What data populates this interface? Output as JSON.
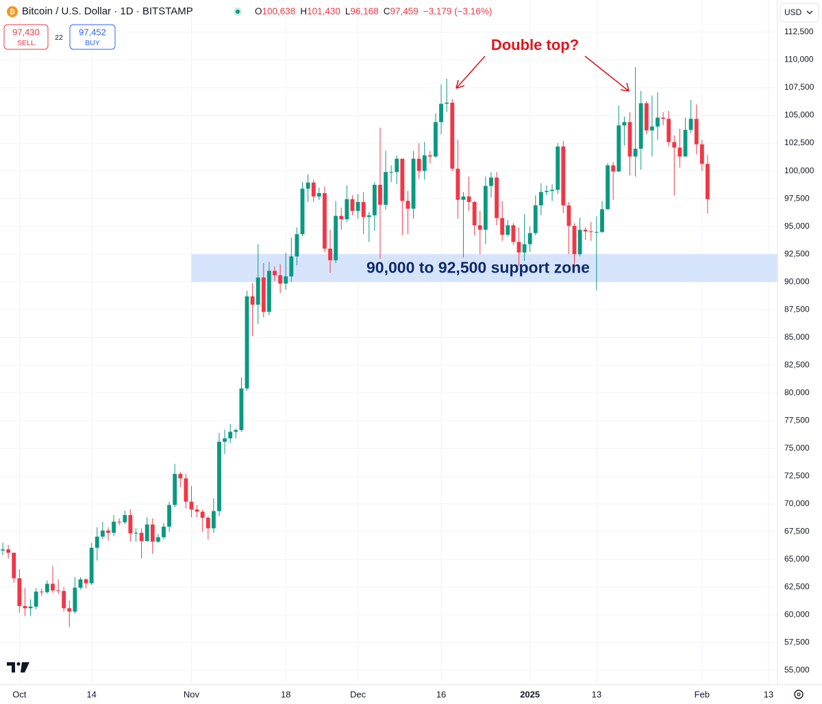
{
  "chart_data": {
    "type": "candlestick",
    "symbol": "Bitcoin / U.S. Dollar · 1D · BITSTAMP",
    "ohlc": [
      {
        "label": "O",
        "value": "100,638"
      },
      {
        "label": "H",
        "value": "101,430"
      },
      {
        "label": "L",
        "value": "96,168"
      },
      {
        "label": "C",
        "value": "97,459"
      }
    ],
    "change": "−3,179 (−3.16%)",
    "sell": {
      "price": "97,430",
      "label": "SELL"
    },
    "spread": "22",
    "buy": {
      "price": "97,452",
      "label": "BUY"
    },
    "currency": "USD",
    "up_color": "#089981",
    "down_color": "#f23645",
    "grid": true,
    "open": [
      65800,
      65900,
      65600,
      63300,
      60800,
      60600,
      60750,
      62100,
      62050,
      62800,
      62200,
      62150,
      60600,
      60300,
      62450,
      63200,
      62850,
      66050,
      67050,
      67600,
      67400,
      68400,
      68350,
      69000,
      67350,
      67400,
      66650,
      68150,
      66600,
      67000,
      67950,
      69900,
      72700,
      72300,
      70200,
      69500,
      69300,
      68750,
      67800,
      69350,
      75600,
      75900,
      76500,
      76650,
      80400,
      88700,
      87950,
      90400,
      87300,
      91000,
      90600,
      89850,
      90500,
      92300,
      94300,
      98400,
      98950,
      97700,
      98000,
      93000,
      91950,
      95950,
      95650,
      97450,
      96400,
      97200,
      95850,
      96000,
      98750,
      96950,
      99900,
      99900,
      101100,
      97300,
      96600,
      101100,
      100000,
      101400,
      101300,
      104400,
      106050,
      106150,
      100200,
      97400,
      97700,
      97200,
      95100,
      94700,
      98650,
      99400,
      95750,
      94250,
      95100,
      93600,
      92650,
      93400,
      94400,
      96900,
      98100,
      98200,
      98300,
      102200,
      96900,
      95050,
      92500,
      94700,
      94550,
      94500,
      94500,
      96550,
      100500,
      99950,
      104100,
      104400,
      101300,
      102000,
      106100,
      103650,
      104000,
      104800,
      104700,
      102600,
      102100,
      101300,
      103700,
      104700,
      102400,
      100638
    ],
    "high": [
      66500,
      66300,
      65600,
      64100,
      62400,
      61400,
      62400,
      62400,
      63100,
      64400,
      63200,
      62500,
      61300,
      63400,
      63400,
      63300,
      66500,
      67900,
      68400,
      67900,
      69000,
      68700,
      69400,
      69500,
      67800,
      67800,
      68800,
      68700,
      67300,
      68300,
      70200,
      73600,
      72900,
      72700,
      71600,
      69900,
      69500,
      68900,
      70500,
      76400,
      76700,
      77200,
      76800,
      81400,
      89200,
      89900,
      93400,
      91700,
      91800,
      91400,
      91600,
      92600,
      94000,
      94900,
      99000,
      99700,
      99200,
      98500,
      98600,
      94700,
      97300,
      96700,
      98700,
      97800,
      97900,
      98100,
      96300,
      99000,
      103900,
      101800,
      100500,
      101400,
      101100,
      98200,
      101800,
      102500,
      102600,
      101800,
      105200,
      107800,
      108300,
      106500,
      102800,
      98100,
      99500,
      97300,
      96400,
      99500,
      99900,
      99900,
      97300,
      95600,
      95300,
      94900,
      96100,
      95000,
      97800,
      98900,
      98700,
      98800,
      102500,
      102700,
      97200,
      95300,
      95800,
      94900,
      95400,
      95900,
      97300,
      100700,
      100800,
      105900,
      104900,
      105300,
      109350,
      107200,
      106300,
      106800,
      107100,
      105300,
      105400,
      103200,
      103800,
      104800,
      106400,
      106000,
      102800,
      101430
    ],
    "low": [
      65400,
      65100,
      62900,
      60200,
      59900,
      59900,
      60500,
      61700,
      61900,
      62000,
      61900,
      60300,
      58900,
      60100,
      62300,
      62400,
      62700,
      64900,
      66800,
      66700,
      67100,
      68100,
      68200,
      66600,
      66600,
      65100,
      66600,
      65500,
      66500,
      66800,
      67500,
      69700,
      71500,
      69600,
      68800,
      68800,
      67500,
      66800,
      67400,
      68900,
      74500,
      75500,
      75900,
      76500,
      80200,
      85100,
      86200,
      86800,
      87000,
      90100,
      89000,
      89300,
      90000,
      91500,
      94100,
      97200,
      97200,
      97400,
      92700,
      90800,
      91700,
      94700,
      95400,
      96000,
      95700,
      94300,
      93600,
      94600,
      92100,
      96500,
      99000,
      98800,
      94200,
      94300,
      95700,
      99300,
      99200,
      100700,
      101200,
      103300,
      105300,
      100000,
      95700,
      92200,
      96400,
      94200,
      92500,
      93400,
      97600,
      95100,
      93700,
      94100,
      93300,
      91400,
      91900,
      92700,
      94200,
      96000,
      97800,
      97300,
      97900,
      96200,
      92500,
      91200,
      92300,
      93800,
      93700,
      89250,
      94400,
      96500,
      97400,
      99900,
      102300,
      99600,
      99500,
      100100,
      103300,
      101300,
      102800,
      104100,
      102200,
      97800,
      100300,
      101300,
      103400,
      101500,
      100000,
      96168
    ],
    "close": [
      65900,
      65600,
      63300,
      60800,
      60600,
      60750,
      62100,
      62050,
      62800,
      62200,
      62150,
      60600,
      60300,
      62450,
      63200,
      62850,
      66050,
      67050,
      67600,
      67400,
      68400,
      68350,
      69000,
      67350,
      67400,
      66650,
      68150,
      66600,
      67000,
      67950,
      69900,
      72700,
      72300,
      70200,
      69500,
      69300,
      68750,
      67800,
      69350,
      75600,
      75900,
      76500,
      76650,
      80400,
      88700,
      87950,
      90400,
      87300,
      91000,
      90600,
      89850,
      90500,
      92300,
      94300,
      98400,
      98950,
      97700,
      98000,
      93000,
      91950,
      95950,
      95650,
      97450,
      96400,
      97200,
      95850,
      96000,
      98750,
      96950,
      99900,
      99900,
      101100,
      97300,
      96600,
      101100,
      100000,
      101400,
      101300,
      104400,
      106050,
      106150,
      100200,
      97400,
      97700,
      97200,
      95100,
      94700,
      98650,
      99400,
      95750,
      94250,
      95100,
      93600,
      92650,
      93400,
      94400,
      96900,
      98100,
      98200,
      98300,
      102200,
      96900,
      95050,
      92500,
      94700,
      94550,
      94500,
      94500,
      96550,
      100500,
      99950,
      104100,
      104400,
      101300,
      102000,
      106100,
      103650,
      104000,
      104800,
      104700,
      102600,
      102100,
      101300,
      103700,
      104700,
      102400,
      100638,
      97459
    ],
    "xlim": [
      -0.5,
      139.6
    ],
    "xticks": [
      {
        "value": 3,
        "label": "Oct"
      },
      {
        "value": 16,
        "label": "14"
      },
      {
        "value": 34,
        "label": "Nov"
      },
      {
        "value": 51,
        "label": "18"
      },
      {
        "value": 64,
        "label": "Dec"
      },
      {
        "value": 79,
        "label": "16"
      },
      {
        "value": 95,
        "label": "2025"
      },
      {
        "value": 107,
        "label": "13"
      },
      {
        "value": 126,
        "label": "Feb"
      },
      {
        "value": 138,
        "label": "13"
      }
    ],
    "ylim": [
      53700,
      115400
    ],
    "yticks": [
      {
        "value": 55000,
        "label": "55,000"
      },
      {
        "value": 57500,
        "label": "57,500"
      },
      {
        "value": 60000,
        "label": "60,000"
      },
      {
        "value": 62500,
        "label": "62,500"
      },
      {
        "value": 65000,
        "label": "65,000"
      },
      {
        "value": 67500,
        "label": "67,500"
      },
      {
        "value": 70000,
        "label": "70,000"
      },
      {
        "value": 72500,
        "label": "72,500"
      },
      {
        "value": 75000,
        "label": "75,000"
      },
      {
        "value": 77500,
        "label": "77,500"
      },
      {
        "value": 80000,
        "label": "80,000"
      },
      {
        "value": 82500,
        "label": "82,500"
      },
      {
        "value": 85000,
        "label": "85,000"
      },
      {
        "value": 87500,
        "label": "87,500"
      },
      {
        "value": 90000,
        "label": "90,000"
      },
      {
        "value": 92500,
        "label": "92,500"
      },
      {
        "value": 95000,
        "label": "95,000"
      },
      {
        "value": 97500,
        "label": "97,500"
      },
      {
        "value": 100000,
        "label": "100,000"
      },
      {
        "value": 102500,
        "label": "102,500"
      },
      {
        "value": 105000,
        "label": "105,000"
      },
      {
        "value": 107500,
        "label": "107,500"
      },
      {
        "value": 110000,
        "label": "110,000"
      },
      {
        "value": 112500,
        "label": "112,500"
      }
    ],
    "zone": {
      "from": 90000,
      "to": 92500,
      "x_from": 34,
      "label": "90,000 to 92,500 support zone",
      "color": "#d6e4fb"
    },
    "annotation": {
      "text": "Double top?",
      "color": "#e0161d"
    }
  }
}
